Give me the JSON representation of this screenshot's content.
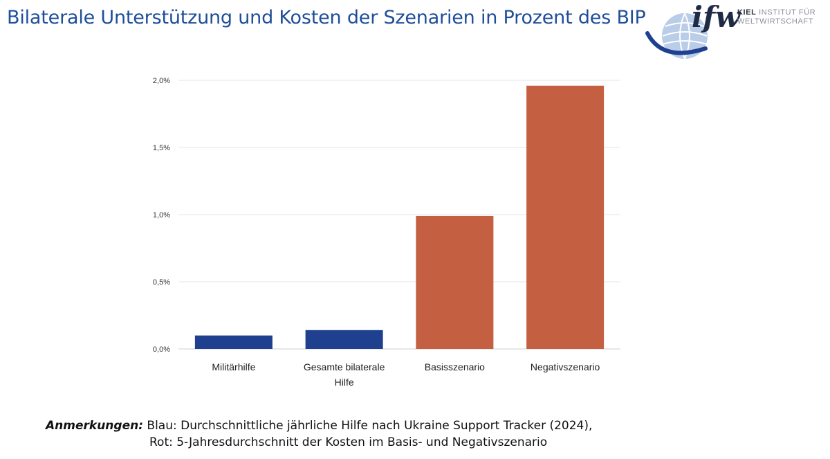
{
  "header": {
    "title": "Bilaterale Unterstützung und Kosten der Szenarien in Prozent des BIP",
    "logo": {
      "mark": "ifw",
      "line1_bold": "KIEL",
      "line1_light": "INSTITUT FÜR",
      "line2": "WELTWIRTSCHAFT"
    }
  },
  "chart_data": {
    "type": "bar",
    "title": "",
    "xlabel": "",
    "ylabel": "",
    "ylim": [
      0,
      2.0
    ],
    "yticks": [
      0.0,
      0.5,
      1.0,
      1.5,
      2.0
    ],
    "ytick_labels": [
      "0,0%",
      "0,5%",
      "1,0%",
      "1,5%",
      "2,0%"
    ],
    "grid": true,
    "categories": [
      [
        "Militärhilfe"
      ],
      [
        "Gesamte bilaterale",
        "Hilfe"
      ],
      [
        "Basisszenario"
      ],
      [
        "Negativszenario"
      ]
    ],
    "values": [
      0.1,
      0.14,
      0.99,
      1.96
    ],
    "colors": [
      "#1f3f8f",
      "#1f3f8f",
      "#c55f41",
      "#c55f41"
    ]
  },
  "notes": {
    "label": "Anmerkungen:",
    "line1": "Blau: Durchschnittliche jährliche Hilfe nach Ukraine Support Tracker (2024),",
    "line2": "Rot: 5-Jahresdurchschnitt der Kosten im Basis- und Negativszenario"
  }
}
